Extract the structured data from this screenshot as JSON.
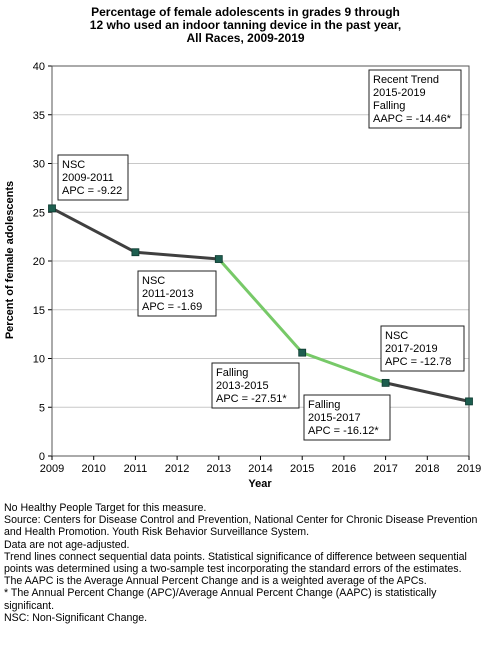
{
  "title_lines": [
    "Percentage of female adolescents in grades 9 through",
    "12 who used an indoor tanning device in the past year,",
    "All Races,  2009-2019"
  ],
  "chart_data": {
    "type": "line",
    "title": "Percentage of female adolescents in grades 9 through 12 who used an indoor tanning device in the past year, All Races,  2009-2019",
    "xlabel": "Year",
    "ylabel": "Percent of female adolescents",
    "xlim": [
      2009,
      2019
    ],
    "ylim": [
      0,
      40
    ],
    "x_ticks": [
      2009,
      2010,
      2011,
      2012,
      2013,
      2014,
      2015,
      2016,
      2017,
      2018,
      2019
    ],
    "y_ticks": [
      0,
      5,
      10,
      15,
      20,
      25,
      30,
      35,
      40
    ],
    "grid": "horizontal",
    "points": [
      {
        "x": 2009,
        "y": 25.4
      },
      {
        "x": 2011,
        "y": 20.9
      },
      {
        "x": 2013,
        "y": 20.2
      },
      {
        "x": 2015,
        "y": 10.6
      },
      {
        "x": 2017,
        "y": 7.5
      },
      {
        "x": 2019,
        "y": 5.6
      }
    ],
    "segments": [
      {
        "from": 2009,
        "to": 2011,
        "color": "#3f3f3f"
      },
      {
        "from": 2011,
        "to": 2013,
        "color": "#3f3f3f"
      },
      {
        "from": 2013,
        "to": 2015,
        "color": "#77c968"
      },
      {
        "from": 2015,
        "to": 2017,
        "color": "#77c968"
      },
      {
        "from": 2017,
        "to": 2019,
        "color": "#3f3f3f"
      }
    ],
    "marker_color": "#1d5e4f",
    "annotations": [
      {
        "lines": [
          "NSC",
          "2009-2011",
          "APC = -9.22"
        ]
      },
      {
        "lines": [
          "NSC",
          "2011-2013",
          "APC = -1.69"
        ]
      },
      {
        "lines": [
          "Falling",
          "2013-2015",
          "APC = -27.51*"
        ]
      },
      {
        "lines": [
          "Falling",
          "2015-2017",
          "APC = -16.12*"
        ]
      },
      {
        "lines": [
          "NSC",
          "2017-2019",
          "APC = -12.78"
        ]
      },
      {
        "lines": [
          "Recent Trend",
          "2015-2019",
          "Falling",
          "AAPC = -14.46*"
        ]
      }
    ]
  },
  "footnotes": [
    "No Healthy People Target for this measure.",
    "Source: Centers for Disease Control and Prevention, National Center for Chronic Disease Prevention and Health Promotion. Youth Risk Behavior Surveillance System.",
    "Data are not age-adjusted.",
    "Trend lines connect sequential data points. Statistical significance of difference between sequential points was determined using a two-sample test incorporating the standard errors of the estimates.",
    "The AAPC is the Average Annual Percent Change and is a weighted average of the APCs.",
    "* The Annual Percent Change (APC)/Average Annual Percent Change (AAPC) is statistically significant.",
    "NSC: Non-Significant Change."
  ]
}
